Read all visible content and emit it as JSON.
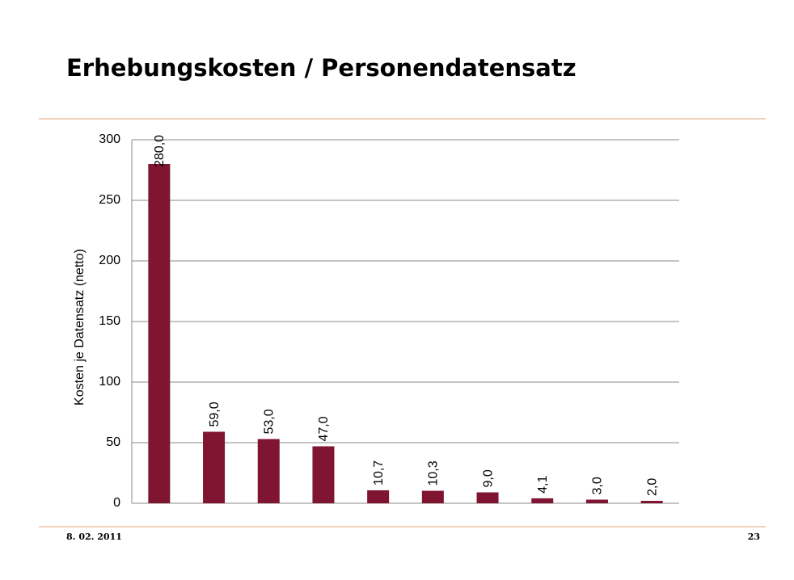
{
  "chart_data": {
    "type": "bar",
    "title": "Erhebungskosten / Personendatensatz",
    "y_label": "Kosten je Datensatz (netto)",
    "categories": [
      null,
      null,
      null,
      null,
      null,
      null,
      null,
      null,
      null,
      null
    ],
    "values": [
      280,
      59,
      53,
      47,
      10.7,
      10.3,
      9,
      4.1,
      3,
      2
    ],
    "value_labels": [
      "280,0",
      "59,0",
      "53,0",
      "47,0",
      "10,7",
      "10,3",
      "9,0",
      "4,1",
      "3,0",
      "2,0"
    ],
    "color": "#7f1530",
    "ylim": [
      0,
      300
    ],
    "yticks": [
      0,
      50,
      100,
      150,
      200,
      250,
      300
    ],
    "grid": true
  },
  "footer": {
    "date": "8. 02. 2011",
    "page": "23"
  }
}
